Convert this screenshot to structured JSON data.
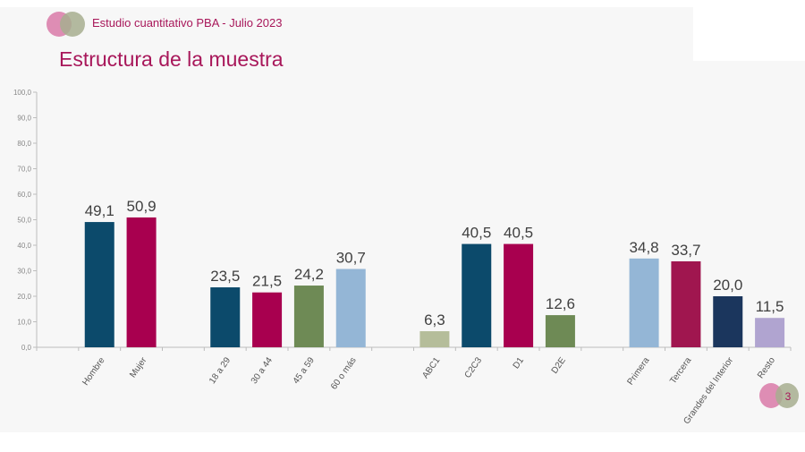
{
  "header": {
    "subtitle": "Estudio cuantitativo PBA - Julio 2023",
    "title": "Estructura de la muestra"
  },
  "page_number": "3",
  "colors": {
    "accent": "#a8175a",
    "logo_pink": "#d97aa8",
    "logo_green": "#a7ae8f"
  },
  "chart_data": {
    "type": "bar",
    "title": "",
    "xlabel": "",
    "ylabel": "",
    "ylim": [
      0,
      100
    ],
    "yticks": [
      "0,0",
      "10,0",
      "20,0",
      "30,0",
      "40,0",
      "50,0",
      "60,0",
      "70,0",
      "80,0",
      "90,0",
      "100,0"
    ],
    "grid": false,
    "categories": [
      "",
      "Hombre",
      "Mujer",
      "",
      "18 a 29",
      "30 a 44",
      "45 a 59",
      "60 o más",
      "",
      "ABC1",
      "C2C3",
      "D1",
      "D2E",
      "",
      "Primera",
      "Tercera",
      "Grandes del Interior",
      "Resto"
    ],
    "values": [
      null,
      49.1,
      50.9,
      null,
      23.5,
      21.5,
      24.2,
      30.7,
      null,
      6.3,
      40.5,
      40.5,
      12.6,
      null,
      34.8,
      33.7,
      20.0,
      11.5
    ],
    "value_labels": [
      "",
      "49,1",
      "50,9",
      "",
      "23,5",
      "21,5",
      "24,2",
      "30,7",
      "",
      "6,3",
      "40,5",
      "40,5",
      "12,6",
      "",
      "34,8",
      "33,7",
      "20,0",
      "11,5"
    ],
    "bar_colors": [
      "",
      "#0c4a6b",
      "#a8004f",
      "",
      "#0c4a6b",
      "#a8004f",
      "#6e8a55",
      "#94b6d6",
      "",
      "#b5bd9a",
      "#0c4a6b",
      "#a8004f",
      "#6e8a55",
      "",
      "#94b6d6",
      "#a0164f",
      "#1b365d",
      "#b0a4d0"
    ]
  }
}
